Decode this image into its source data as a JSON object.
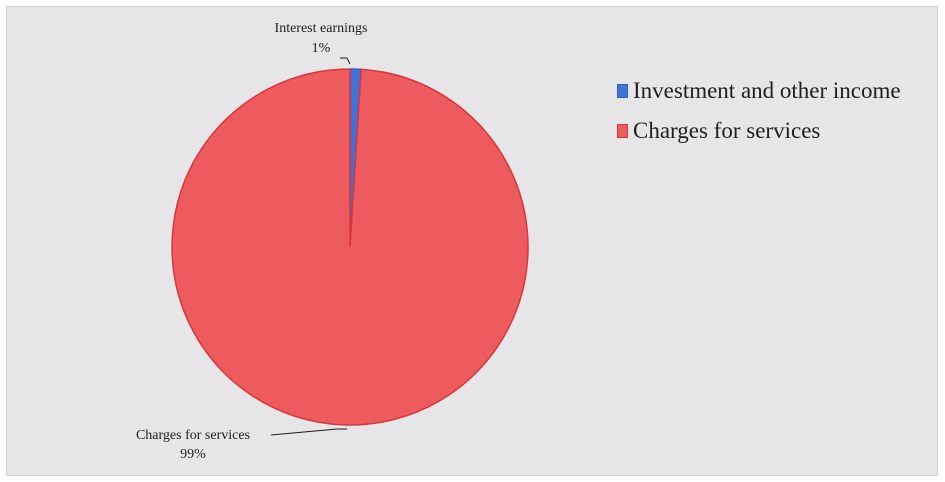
{
  "chart_data": {
    "type": "pie",
    "title": "",
    "slices": [
      {
        "name": "Investment and other income",
        "label": "Interest earnings",
        "percent_label": "1%",
        "value": 1,
        "color": "#3f74d6"
      },
      {
        "name": "Charges for services",
        "label": "Charges for services",
        "percent_label": "99%",
        "value": 99,
        "color": "#ee5b5e"
      }
    ],
    "legend": {
      "position": "top-right",
      "entries": [
        "Investment and other income",
        "Charges for services"
      ]
    },
    "colors": {
      "background": "#e6e6e8",
      "slice_border": "#d8363c"
    }
  }
}
